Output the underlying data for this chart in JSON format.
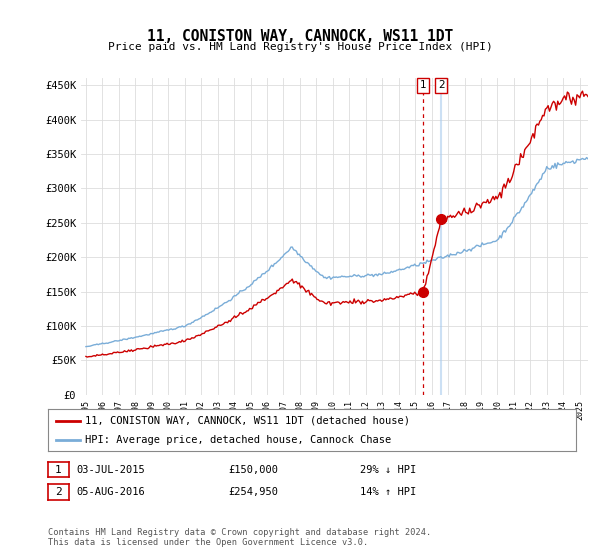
{
  "title": "11, CONISTON WAY, CANNOCK, WS11 1DT",
  "subtitle": "Price paid vs. HM Land Registry's House Price Index (HPI)",
  "ylabel_ticks": [
    "£0",
    "£50K",
    "£100K",
    "£150K",
    "£200K",
    "£250K",
    "£300K",
    "£350K",
    "£400K",
    "£450K"
  ],
  "ylim": [
    0,
    460000
  ],
  "xlim_start": 1994.7,
  "xlim_end": 2025.5,
  "hpi_color": "#7aadd8",
  "price_color": "#cc0000",
  "vline1_color": "#cc0000",
  "vline2_color": "#aaccee",
  "marker1_x": 2015.5,
  "marker1_y": 150000,
  "marker2_x": 2016.58,
  "marker2_y": 254950,
  "legend_line1": "11, CONISTON WAY, CANNOCK, WS11 1DT (detached house)",
  "legend_line2": "HPI: Average price, detached house, Cannock Chase",
  "transaction1_label": "1",
  "transaction1_date": "03-JUL-2015",
  "transaction1_price": "£150,000",
  "transaction1_hpi": "29% ↓ HPI",
  "transaction2_label": "2",
  "transaction2_date": "05-AUG-2016",
  "transaction2_price": "£254,950",
  "transaction2_hpi": "14% ↑ HPI",
  "footnote": "Contains HM Land Registry data © Crown copyright and database right 2024.\nThis data is licensed under the Open Government Licence v3.0.",
  "background_color": "#ffffff",
  "grid_color": "#dddddd"
}
